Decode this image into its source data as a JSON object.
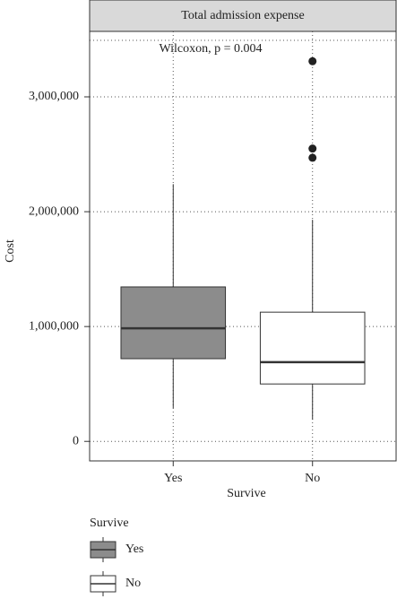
{
  "chart_data": {
    "type": "box",
    "strip_title": "Total admission expense",
    "annotation": "Wilcoxon, p = 0.004",
    "xlabel": "Survive",
    "ylabel": "Cost",
    "categories": [
      "Yes",
      "No"
    ],
    "boxes": [
      {
        "name": "Yes",
        "color": "#8c8c8c",
        "min": 290000,
        "q1": 720000,
        "median": 985000,
        "q3": 1345000,
        "max": 2240000,
        "outliers": []
      },
      {
        "name": "No",
        "color": "#ffffff",
        "min": 190000,
        "q1": 500000,
        "median": 690000,
        "q3": 1125000,
        "max": 1930000,
        "outliers": [
          3310000,
          2550000,
          2470000
        ]
      }
    ],
    "ylim": [
      -170000,
      3570000
    ],
    "yticks": [
      {
        "value": 0,
        "label": "0"
      },
      {
        "value": 1000000,
        "label": "1,000,000"
      },
      {
        "value": 2000000,
        "label": "2,000,000"
      },
      {
        "value": 3000000,
        "label": "3,000,000"
      }
    ],
    "grid": true,
    "legend_title": "Survive",
    "legend_position": "bottom-left"
  }
}
